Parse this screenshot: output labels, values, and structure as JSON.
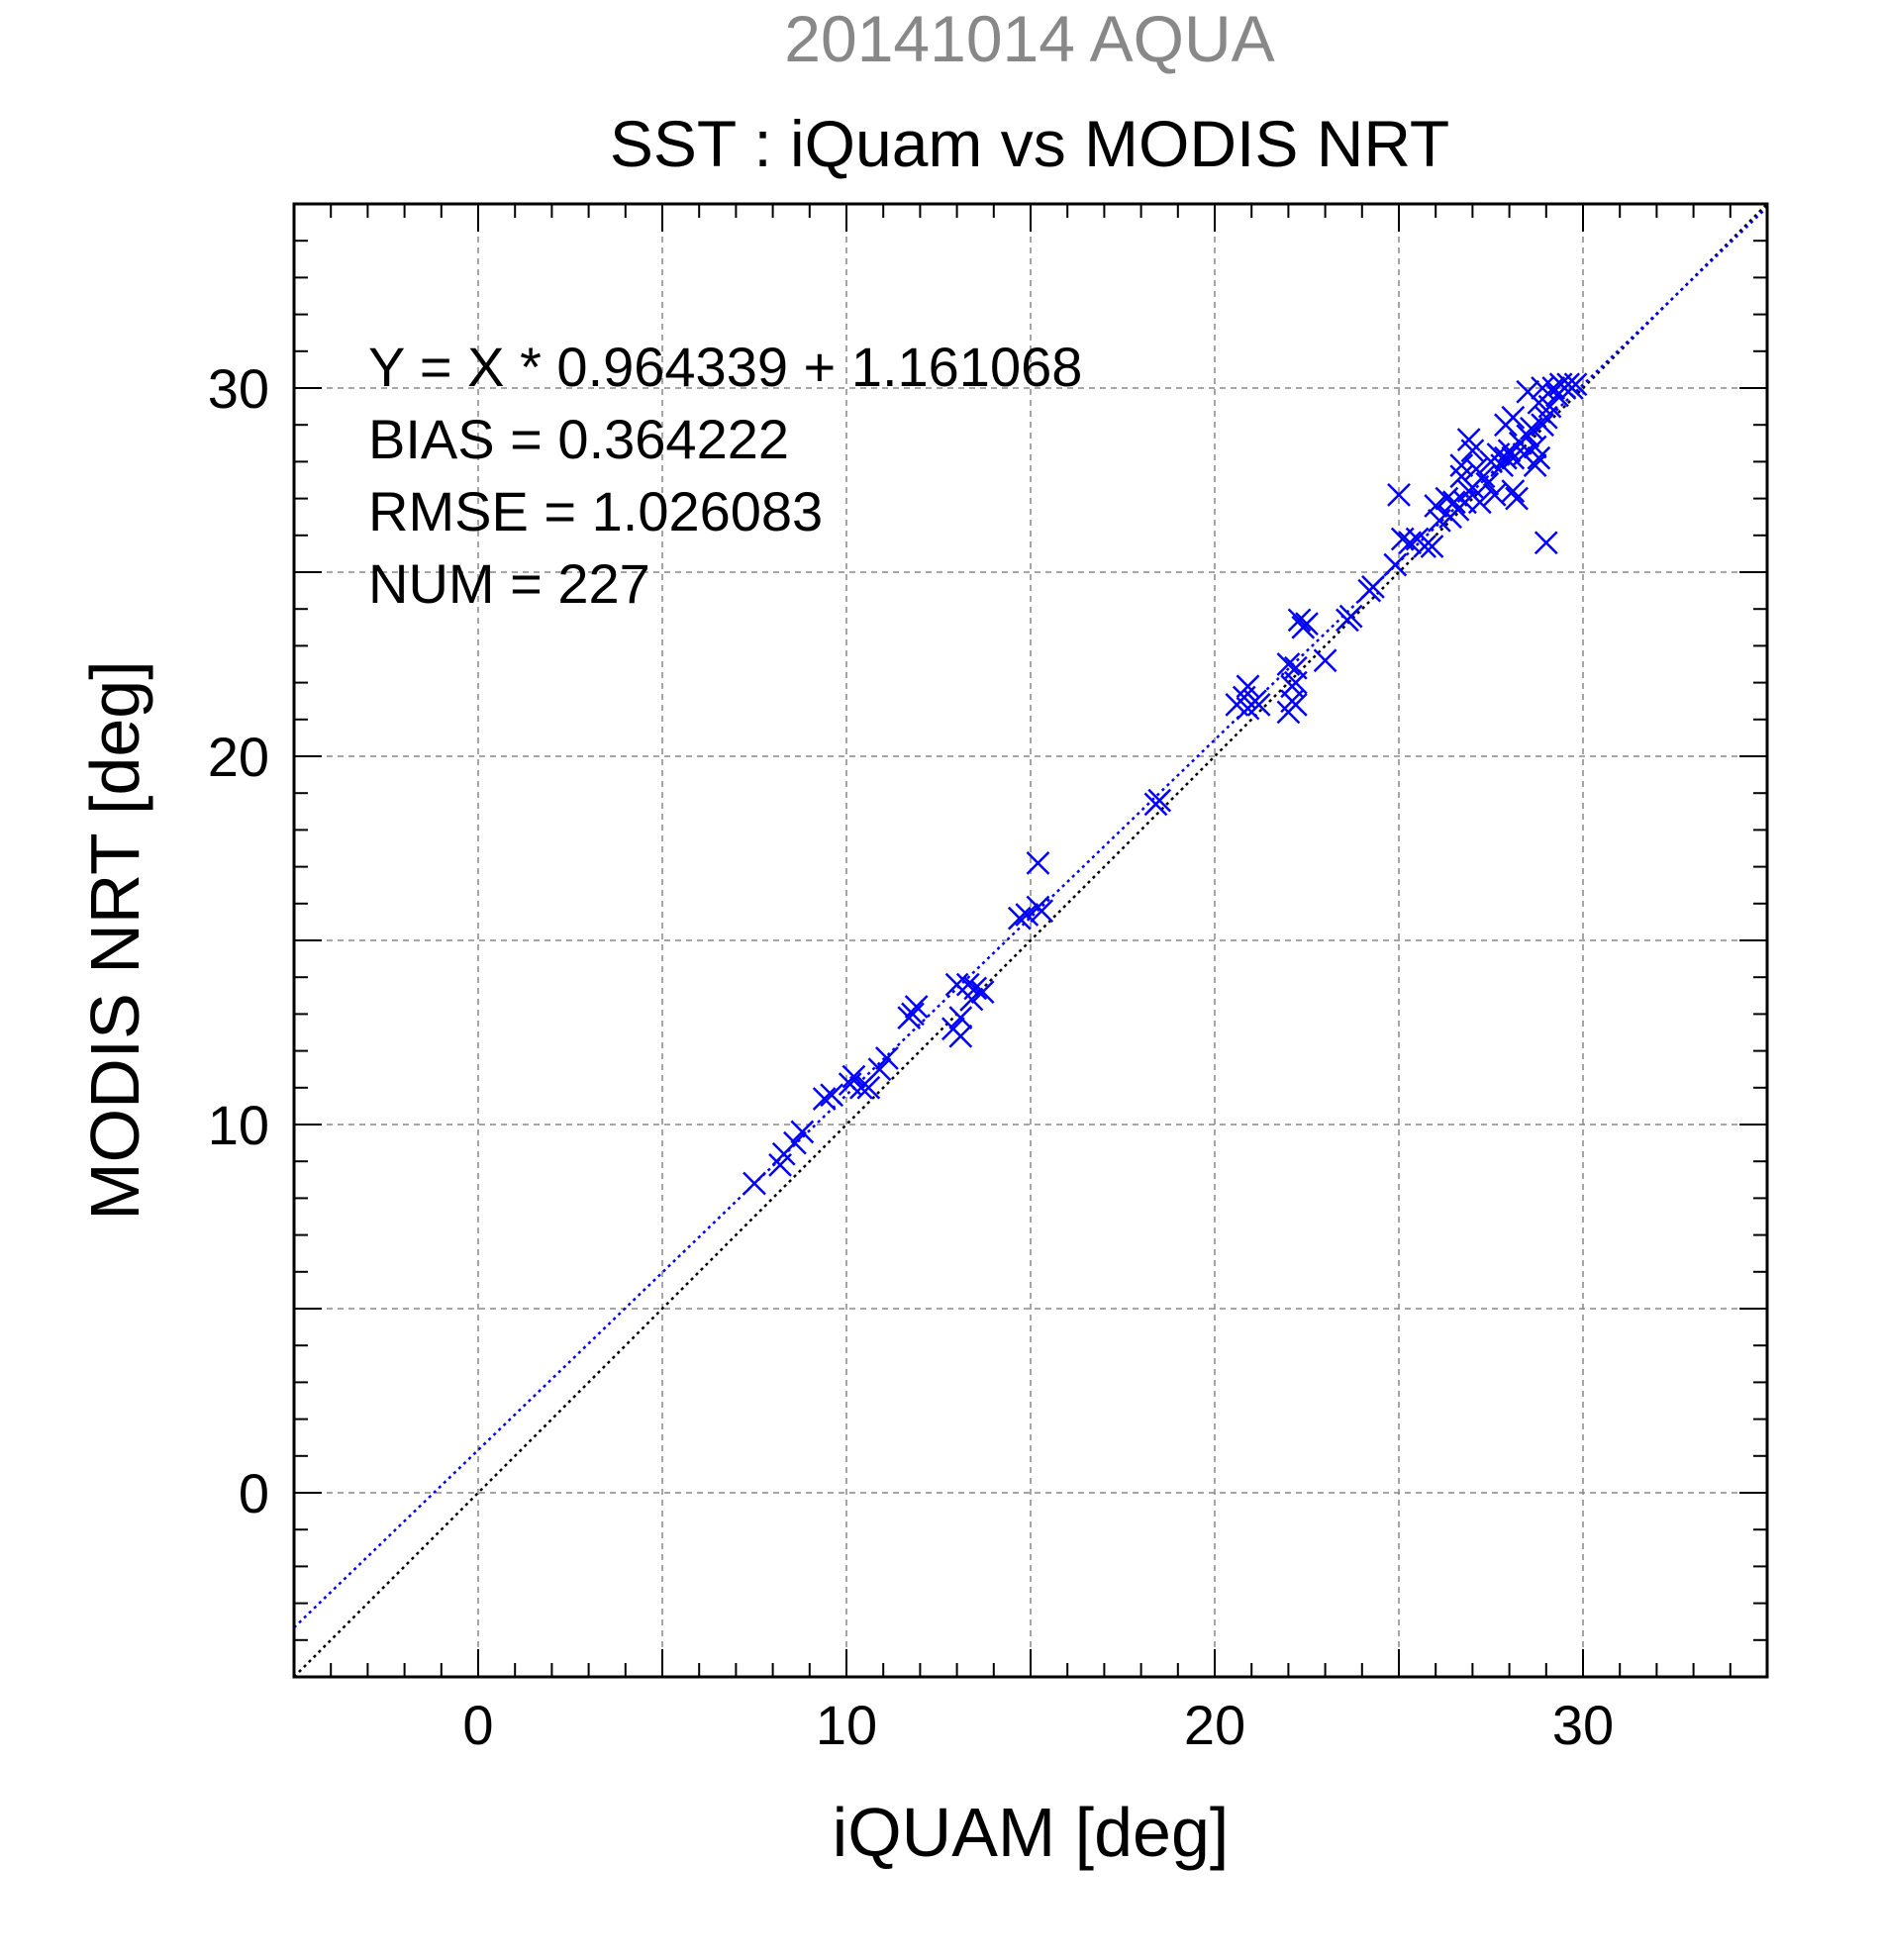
{
  "chart_data": {
    "type": "scatter",
    "supertitle": "20141014 AQUA",
    "title": "SST : iQuam vs MODIS NRT",
    "xlabel": "iQUAM [deg]",
    "ylabel": "MODIS NRT [deg]",
    "xlim": [
      -5,
      35
    ],
    "ylim": [
      -5,
      35
    ],
    "xticks": [
      0,
      10,
      20,
      30
    ],
    "yticks": [
      0,
      10,
      20,
      30
    ],
    "grid": true,
    "stats": [
      "Y = X * 0.964339 + 1.161068",
      "BIAS = 0.364222",
      "RMSE = 1.026083",
      "NUM = 227"
    ],
    "fit": {
      "slope": 0.964339,
      "intercept": 1.161068
    },
    "colors": {
      "points": "#0000ff",
      "fit_line": "#0000ff",
      "identity_line": "#000000",
      "grid": "#888888",
      "supertitle": "#888888"
    },
    "points": [
      [
        7.5,
        8.4
      ],
      [
        8.2,
        8.9
      ],
      [
        8.3,
        9.2
      ],
      [
        8.6,
        9.5
      ],
      [
        8.8,
        9.8
      ],
      [
        9.4,
        10.7
      ],
      [
        9.6,
        10.8
      ],
      [
        10.1,
        11.1
      ],
      [
        10.2,
        11.3
      ],
      [
        10.4,
        11.0
      ],
      [
        10.6,
        11.0
      ],
      [
        10.9,
        11.5
      ],
      [
        11.1,
        11.8
      ],
      [
        11.7,
        12.9
      ],
      [
        11.9,
        13.2
      ],
      [
        11.8,
        13.0
      ],
      [
        12.9,
        12.6
      ],
      [
        13.1,
        12.4
      ],
      [
        13.1,
        12.9
      ],
      [
        13.0,
        13.8
      ],
      [
        13.3,
        13.8
      ],
      [
        13.5,
        13.7
      ],
      [
        13.7,
        13.6
      ],
      [
        13.4,
        13.4
      ],
      [
        14.7,
        15.6
      ],
      [
        14.9,
        15.7
      ],
      [
        15.2,
        15.9
      ],
      [
        15.3,
        15.8
      ],
      [
        15.2,
        17.1
      ],
      [
        18.4,
        18.7
      ],
      [
        18.5,
        18.8
      ],
      [
        20.6,
        21.4
      ],
      [
        20.8,
        21.6
      ],
      [
        20.9,
        21.9
      ],
      [
        21.1,
        21.5
      ],
      [
        21.2,
        21.4
      ],
      [
        20.9,
        21.3
      ],
      [
        22.0,
        21.2
      ],
      [
        22.1,
        21.5
      ],
      [
        22.2,
        21.4
      ],
      [
        22.1,
        21.9
      ],
      [
        22.2,
        22.0
      ],
      [
        22.2,
        22.4
      ],
      [
        22.0,
        22.5
      ],
      [
        22.4,
        23.5
      ],
      [
        22.3,
        23.7
      ],
      [
        22.5,
        23.6
      ],
      [
        23.0,
        22.6
      ],
      [
        23.6,
        23.7
      ],
      [
        23.7,
        23.8
      ],
      [
        24.2,
        24.5
      ],
      [
        24.3,
        24.6
      ],
      [
        24.9,
        25.2
      ],
      [
        25.0,
        27.1
      ],
      [
        25.1,
        25.9
      ],
      [
        25.3,
        25.8
      ],
      [
        25.5,
        25.9
      ],
      [
        25.7,
        25.7
      ],
      [
        25.9,
        25.7
      ],
      [
        26.0,
        26.8
      ],
      [
        26.1,
        26.4
      ],
      [
        26.3,
        27.0
      ],
      [
        26.4,
        26.5
      ],
      [
        26.5,
        26.9
      ],
      [
        26.6,
        26.7
      ],
      [
        26.7,
        27.6
      ],
      [
        26.7,
        27.9
      ],
      [
        26.8,
        26.9
      ],
      [
        26.9,
        27.2
      ],
      [
        26.9,
        28.6
      ],
      [
        27.0,
        28.3
      ],
      [
        27.0,
        27.3
      ],
      [
        27.1,
        27.8
      ],
      [
        27.2,
        26.9
      ],
      [
        27.3,
        27.6
      ],
      [
        27.4,
        27.4
      ],
      [
        27.5,
        28.0
      ],
      [
        27.6,
        27.1
      ],
      [
        27.7,
        28.2
      ],
      [
        27.8,
        27.9
      ],
      [
        27.9,
        28.1
      ],
      [
        27.9,
        29.0
      ],
      [
        28.0,
        28.3
      ],
      [
        28.1,
        28.1
      ],
      [
        28.1,
        29.2
      ],
      [
        28.1,
        27.2
      ],
      [
        28.2,
        27.0
      ],
      [
        28.3,
        28.5
      ],
      [
        28.4,
        28.2
      ],
      [
        28.5,
        28.7
      ],
      [
        28.5,
        29.9
      ],
      [
        28.6,
        28.9
      ],
      [
        28.7,
        28.4
      ],
      [
        28.7,
        27.9
      ],
      [
        28.8,
        29.6
      ],
      [
        28.8,
        28.1
      ],
      [
        28.9,
        29.0
      ],
      [
        28.9,
        30.0
      ],
      [
        29.0,
        25.8
      ],
      [
        29.0,
        29.2
      ],
      [
        29.1,
        29.5
      ],
      [
        29.2,
        30.0
      ],
      [
        29.3,
        29.8
      ],
      [
        29.4,
        30.1
      ],
      [
        29.5,
        30.0
      ],
      [
        29.6,
        30.1
      ],
      [
        29.7,
        30.0
      ],
      [
        29.8,
        30.1
      ]
    ]
  }
}
